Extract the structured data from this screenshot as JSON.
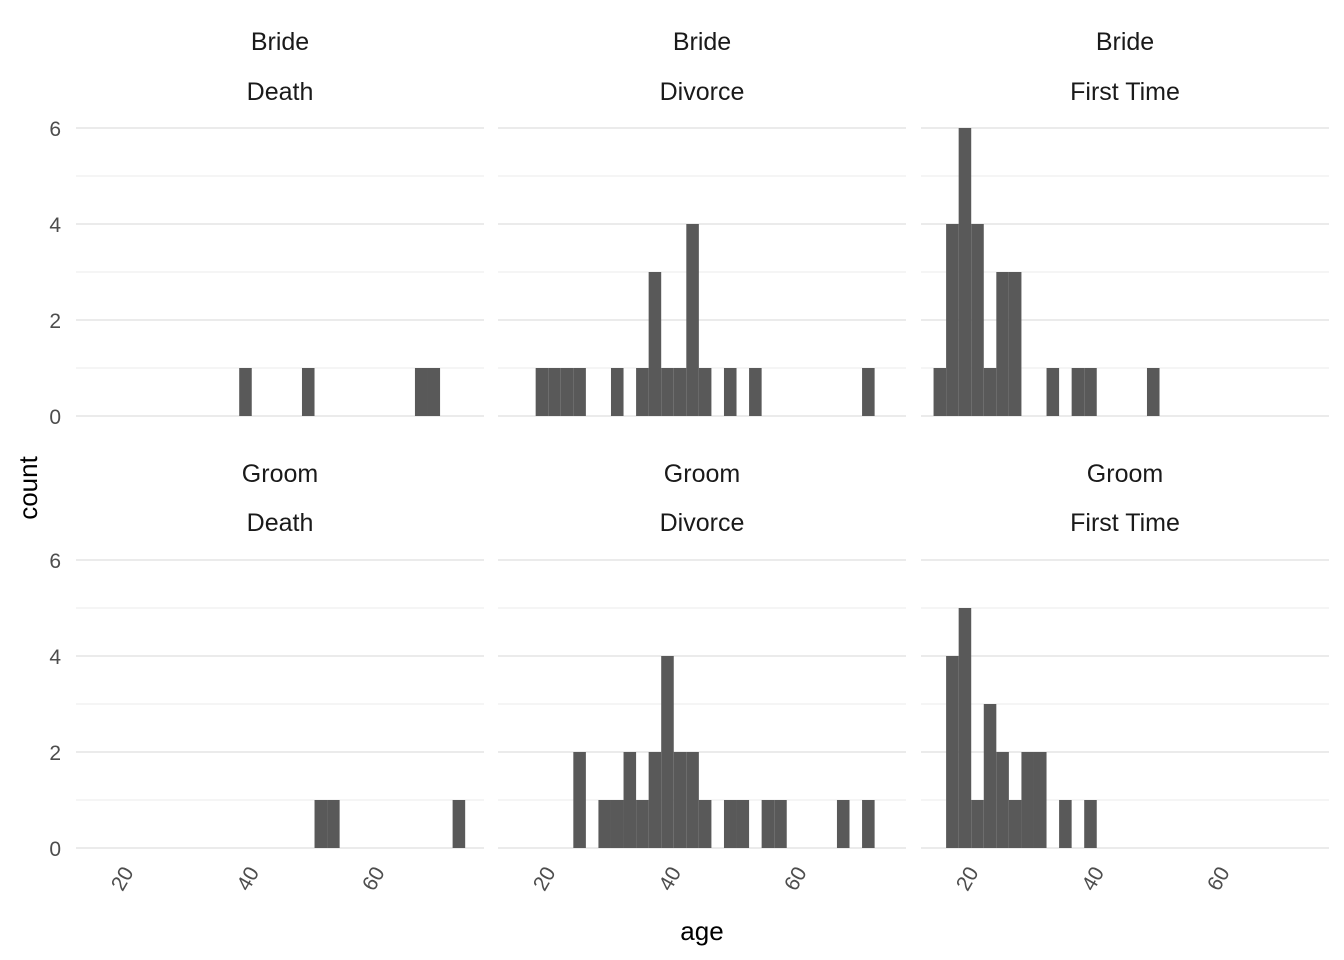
{
  "chart_data": {
    "type": "bar",
    "subtype": "faceted-histogram",
    "xlabel": "age",
    "ylabel": "count",
    "xlim": [
      12,
      77
    ],
    "ylim": [
      0,
      6
    ],
    "bin_width": 2,
    "x_ticks": [
      20,
      40,
      60
    ],
    "x_tick_labels": [
      "20",
      "40",
      "60"
    ],
    "y_ticks": [
      0,
      2,
      4,
      6
    ],
    "y_tick_labels": [
      "0",
      "2",
      "4",
      "6"
    ],
    "grid": true,
    "bar_color": "#595959",
    "grid_color": "#ebebeb",
    "panels": [
      {
        "strip_top": "Bride",
        "strip_bottom": "Death",
        "bins": [
          {
            "x": 39,
            "count": 1
          },
          {
            "x": 49,
            "count": 1
          },
          {
            "x": 67,
            "count": 1
          },
          {
            "x": 69,
            "count": 1
          }
        ]
      },
      {
        "strip_top": "Bride",
        "strip_bottom": "Divorce",
        "bins": [
          {
            "x": 19,
            "count": 1
          },
          {
            "x": 21,
            "count": 1
          },
          {
            "x": 23,
            "count": 1
          },
          {
            "x": 25,
            "count": 1
          },
          {
            "x": 31,
            "count": 1
          },
          {
            "x": 35,
            "count": 1
          },
          {
            "x": 37,
            "count": 3
          },
          {
            "x": 39,
            "count": 1
          },
          {
            "x": 41,
            "count": 1
          },
          {
            "x": 43,
            "count": 4
          },
          {
            "x": 45,
            "count": 1
          },
          {
            "x": 49,
            "count": 1
          },
          {
            "x": 53,
            "count": 1
          },
          {
            "x": 71,
            "count": 1
          }
        ]
      },
      {
        "strip_top": "Bride",
        "strip_bottom": "First Time",
        "bins": [
          {
            "x": 15,
            "count": 1
          },
          {
            "x": 17,
            "count": 4
          },
          {
            "x": 19,
            "count": 6
          },
          {
            "x": 21,
            "count": 4
          },
          {
            "x": 23,
            "count": 1
          },
          {
            "x": 25,
            "count": 3
          },
          {
            "x": 27,
            "count": 3
          },
          {
            "x": 33,
            "count": 1
          },
          {
            "x": 37,
            "count": 1
          },
          {
            "x": 39,
            "count": 1
          },
          {
            "x": 49,
            "count": 1
          }
        ]
      },
      {
        "strip_top": "Groom",
        "strip_bottom": "Death",
        "bins": [
          {
            "x": 51,
            "count": 1
          },
          {
            "x": 53,
            "count": 1
          },
          {
            "x": 73,
            "count": 1
          }
        ]
      },
      {
        "strip_top": "Groom",
        "strip_bottom": "Divorce",
        "bins": [
          {
            "x": 25,
            "count": 2
          },
          {
            "x": 29,
            "count": 1
          },
          {
            "x": 31,
            "count": 1
          },
          {
            "x": 33,
            "count": 2
          },
          {
            "x": 35,
            "count": 1
          },
          {
            "x": 37,
            "count": 2
          },
          {
            "x": 39,
            "count": 4
          },
          {
            "x": 41,
            "count": 2
          },
          {
            "x": 43,
            "count": 2
          },
          {
            "x": 45,
            "count": 1
          },
          {
            "x": 49,
            "count": 1
          },
          {
            "x": 51,
            "count": 1
          },
          {
            "x": 55,
            "count": 1
          },
          {
            "x": 57,
            "count": 1
          },
          {
            "x": 67,
            "count": 1
          },
          {
            "x": 71,
            "count": 1
          }
        ]
      },
      {
        "strip_top": "Groom",
        "strip_bottom": "First Time",
        "bins": [
          {
            "x": 17,
            "count": 4
          },
          {
            "x": 19,
            "count": 5
          },
          {
            "x": 21,
            "count": 1
          },
          {
            "x": 23,
            "count": 3
          },
          {
            "x": 25,
            "count": 2
          },
          {
            "x": 27,
            "count": 1
          },
          {
            "x": 29,
            "count": 2
          },
          {
            "x": 31,
            "count": 2
          },
          {
            "x": 35,
            "count": 1
          },
          {
            "x": 39,
            "count": 1
          }
        ]
      }
    ]
  }
}
